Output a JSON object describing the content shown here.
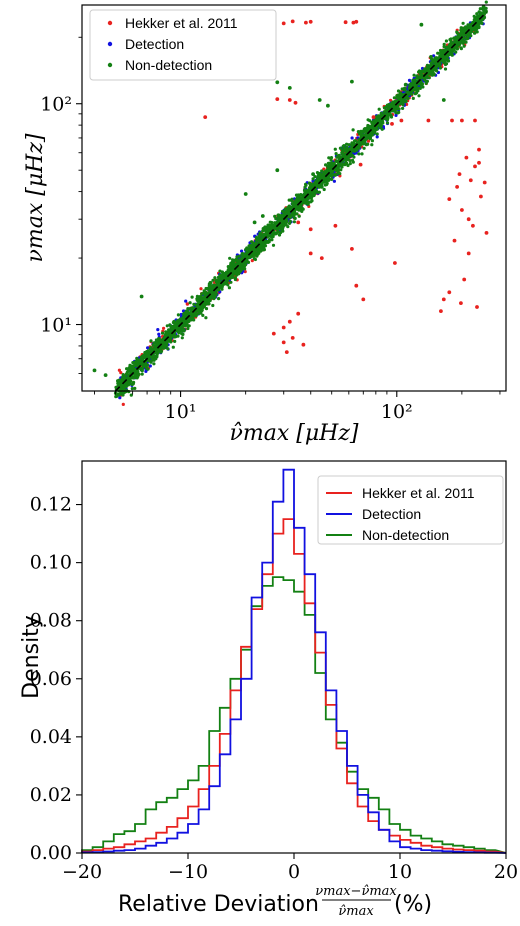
{
  "chart_data": [
    {
      "type": "scatter",
      "xlabel": "ν̂max [μHz]",
      "ylabel": "νmax [μHz]",
      "xscale": "log",
      "yscale": "log",
      "xlim": [
        3.5,
        320
      ],
      "ylim": [
        5.0,
        280
      ],
      "x_ticks": [
        {
          "value": 10,
          "label": "10¹"
        },
        {
          "value": 100,
          "label": "10²"
        }
      ],
      "y_ticks": [
        {
          "value": 10,
          "label": "10¹"
        },
        {
          "value": 100,
          "label": "10²"
        }
      ],
      "legend_position": "top-left",
      "reference_line": {
        "style": "dashed",
        "color": "#000000",
        "from": [
          5,
          5
        ],
        "to": [
          260,
          260
        ]
      },
      "series": [
        {
          "name": "Hekker et al. 2011",
          "color": "#e8221f",
          "points": [
            [
              30,
              231
            ],
            [
              33,
              236
            ],
            [
              38,
              233
            ],
            [
              40,
              235
            ],
            [
              58,
              234
            ],
            [
              63,
              233
            ],
            [
              65,
              235
            ],
            [
              13,
              87
            ],
            [
              28,
              105
            ],
            [
              32,
              104
            ],
            [
              34,
              101
            ],
            [
              78,
              87
            ],
            [
              105,
              84
            ],
            [
              140,
              84
            ],
            [
              180,
              84
            ],
            [
              200,
              84
            ],
            [
              230,
              84
            ],
            [
              68,
              53
            ],
            [
              95,
              81
            ],
            [
              35,
              29
            ],
            [
              40,
              27
            ],
            [
              52,
              28
            ],
            [
              62,
              22
            ],
            [
              40,
              21
            ],
            [
              45,
              20
            ],
            [
              65,
              15
            ],
            [
              70,
              13
            ],
            [
              98,
              19
            ],
            [
              32,
              10.3
            ],
            [
              35,
              11.2
            ],
            [
              30,
              9.7
            ],
            [
              27,
              9.1
            ],
            [
              33,
              8.7
            ],
            [
              30,
              8.3
            ],
            [
              37,
              8.1
            ],
            [
              31,
              7.5
            ],
            [
              175,
              37
            ],
            [
              195,
              48
            ],
            [
              210,
              57
            ],
            [
              240,
              62
            ],
            [
              200,
              33
            ],
            [
              225,
              28
            ],
            [
              185,
              24
            ],
            [
              215,
              21
            ],
            [
              205,
              16
            ],
            [
              175,
              14
            ],
            [
              165,
              13
            ],
            [
              198,
              12.5
            ],
            [
              235,
              12
            ],
            [
              160,
              11.5
            ],
            [
              255,
              44
            ],
            [
              245,
              38
            ],
            [
              230,
              52
            ],
            [
              190,
              42
            ],
            [
              215,
              30
            ],
            [
              260,
              26
            ],
            [
              220,
              45
            ],
            [
              240,
              54
            ]
          ]
        },
        {
          "name": "Detection",
          "color": "#1111e0",
          "points": []
        },
        {
          "name": "Non-detection",
          "color": "#138013",
          "points": [
            [
              22,
              168
            ],
            [
              26,
              130
            ],
            [
              28,
              125
            ],
            [
              32,
              118
            ],
            [
              44,
              104
            ],
            [
              48,
              98
            ],
            [
              62,
              126
            ],
            [
              20,
              39
            ],
            [
              22,
              29
            ],
            [
              24,
              31
            ],
            [
              27,
              26
            ],
            [
              41,
              48
            ],
            [
              45,
              42
            ],
            [
              28,
              50
            ],
            [
              6.6,
              13.4
            ],
            [
              4.0,
              6.2
            ],
            [
              4.5,
              5.9
            ],
            [
              110,
              122
            ],
            [
              130,
              228
            ],
            [
              144,
              163
            ],
            [
              165,
              104
            ]
          ]
        }
      ]
    },
    {
      "type": "histogram",
      "xlabel": "Relative Deviation",
      "xlabel_fraction": {
        "numerator": "νmax−ν̂max",
        "denominator": "ν̂max"
      },
      "xlabel_unit": "(%)",
      "ylabel": "Density",
      "xlim": [
        -20,
        20
      ],
      "ylim": [
        0,
        0.135
      ],
      "x_ticks": [
        {
          "value": -20,
          "label": "−20"
        },
        {
          "value": -10,
          "label": "−10"
        },
        {
          "value": 0,
          "label": "0"
        },
        {
          "value": 10,
          "label": "10"
        },
        {
          "value": 20,
          "label": "20"
        }
      ],
      "y_ticks": [
        {
          "value": 0.0,
          "label": "0.00"
        },
        {
          "value": 0.02,
          "label": "0.02"
        },
        {
          "value": 0.04,
          "label": "0.04"
        },
        {
          "value": 0.06,
          "label": "0.06"
        },
        {
          "value": 0.08,
          "label": "0.08"
        },
        {
          "value": 0.1,
          "label": "0.10"
        },
        {
          "value": 0.12,
          "label": "0.12"
        }
      ],
      "legend_position": "top-right",
      "bin_edges": [
        -20.0,
        -19.0,
        -18.0,
        -17.0,
        -16.0,
        -15.0,
        -14.0,
        -13.0,
        -12.0,
        -11.0,
        -10.0,
        -9.0,
        -8.0,
        -7.0,
        -6.0,
        -5.0,
        -4.0,
        -3.0,
        -2.0,
        -1.0,
        0.0,
        1.0,
        2.0,
        3.0,
        4.0,
        5.0,
        6.0,
        7.0,
        8.0,
        9.0,
        10.0,
        11.0,
        12.0,
        13.0,
        14.0,
        15.0,
        16.0,
        17.0,
        18.0,
        19.0
      ],
      "series": [
        {
          "name": "Hekker et al. 2011",
          "color": "#e8221f",
          "values": [
            0.0005,
            0.001,
            0.0015,
            0.002,
            0.003,
            0.004,
            0.005,
            0.007,
            0.009,
            0.012,
            0.016,
            0.022,
            0.03,
            0.041,
            0.056,
            0.071,
            0.084,
            0.096,
            0.11,
            0.115,
            0.103,
            0.086,
            0.069,
            0.051,
            0.036,
            0.024,
            0.016,
            0.011,
            0.008,
            0.006,
            0.0045,
            0.0035,
            0.0025,
            0.002,
            0.0015,
            0.0012,
            0.001,
            0.0008,
            0.0005
          ]
        },
        {
          "name": "Detection",
          "color": "#1111e0",
          "values": [
            0.0002,
            0.0003,
            0.0005,
            0.0008,
            0.001,
            0.0015,
            0.0025,
            0.0035,
            0.005,
            0.007,
            0.01,
            0.015,
            0.023,
            0.034,
            0.046,
            0.06,
            0.088,
            0.1,
            0.121,
            0.132,
            0.112,
            0.096,
            0.076,
            0.056,
            0.042,
            0.03,
            0.02,
            0.014,
            0.008,
            0.004,
            0.002,
            0.0015,
            0.001,
            0.0008,
            0.0006,
            0.0004,
            0.0003,
            0.0002,
            0.0001
          ]
        },
        {
          "name": "Non-detection",
          "color": "#138013",
          "values": [
            0.001,
            0.002,
            0.004,
            0.0065,
            0.0075,
            0.01,
            0.015,
            0.0175,
            0.019,
            0.022,
            0.025,
            0.03,
            0.042,
            0.05,
            0.06,
            0.07,
            0.085,
            0.092,
            0.095,
            0.094,
            0.09,
            0.082,
            0.062,
            0.046,
            0.038,
            0.028,
            0.022,
            0.019,
            0.015,
            0.01,
            0.008,
            0.006,
            0.005,
            0.004,
            0.003,
            0.0025,
            0.002,
            0.0015,
            0.001
          ]
        }
      ]
    }
  ]
}
